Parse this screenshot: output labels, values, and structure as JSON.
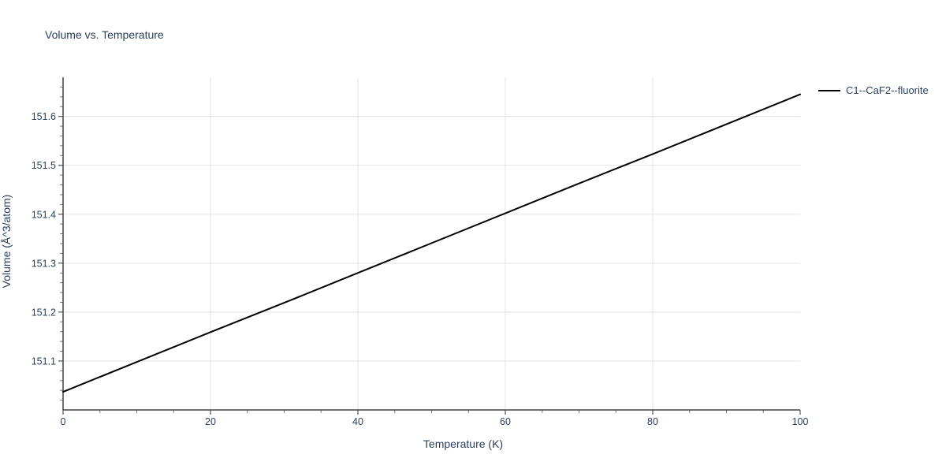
{
  "chart": {
    "title": "Volume vs. Temperature",
    "xlabel": "Temperature (K)",
    "ylabel": "Volume (Å^3/atom)"
  },
  "legend": {
    "items": [
      {
        "label": "C1--CaF2--fluorite",
        "color": "#000000"
      }
    ]
  },
  "colors": {
    "text": "#2a3f5f",
    "grid": "#e3e3e3",
    "axis": "#444444",
    "major_tick": "#555555",
    "minor_tick": "#777777",
    "series": "#000000",
    "background": "#ffffff"
  },
  "chart_data": {
    "type": "line",
    "title": "Volume vs. Temperature",
    "xlabel": "Temperature (K)",
    "ylabel": "Volume (Å^3/atom)",
    "xlim": [
      0,
      100
    ],
    "ylim": [
      151.0,
      151.68
    ],
    "grid": true,
    "grid_x": true,
    "grid_y": true,
    "legend_position": "top-right-outside",
    "x_ticks": {
      "values": [
        0,
        20,
        40,
        60,
        80,
        100
      ],
      "labels": [
        "0",
        "20",
        "40",
        "60",
        "80",
        "100"
      ],
      "minor_step": 5
    },
    "y_ticks": {
      "values": [
        151.1,
        151.2,
        151.3,
        151.4,
        151.5,
        151.6
      ],
      "labels": [
        "151.1",
        "151.2",
        "151.3",
        "151.4",
        "151.5",
        "151.6"
      ],
      "minor_step": 0.02
    },
    "series": [
      {
        "name": "C1--CaF2--fluorite",
        "color": "#000000",
        "x": [
          0,
          10,
          20,
          30,
          40,
          50,
          60,
          70,
          80,
          90,
          100
        ],
        "y": [
          151.037,
          151.098,
          151.159,
          151.219,
          151.28,
          151.341,
          151.402,
          151.463,
          151.523,
          151.584,
          151.645
        ]
      }
    ]
  }
}
